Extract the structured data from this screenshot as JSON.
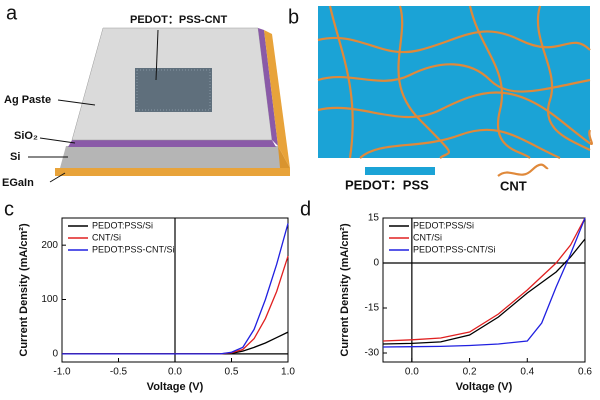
{
  "panels": {
    "a": {
      "label": "a",
      "center_label": "PEDOT：PSS-CNT",
      "layers": [
        "Ag Paste",
        "SiO₂",
        "Si",
        "EGaIn"
      ]
    },
    "b": {
      "label": "b",
      "legend": [
        "PEDOT：PSS",
        "CNT"
      ]
    }
  },
  "chart_data": [
    {
      "type": "line",
      "panel_label": "c",
      "xlabel": "Voltage (V)",
      "ylabel": "Current Density (mA/cm²)",
      "x": [
        -1.0,
        -0.5,
        0,
        0.4,
        0.5,
        0.6,
        0.7,
        0.8,
        0.9,
        1.0
      ],
      "series": [
        {
          "name": "PEDOT:PSS/Si",
          "color": "#000000",
          "values": [
            0,
            0,
            0,
            0,
            1,
            5,
            12,
            20,
            30,
            40
          ]
        },
        {
          "name": "CNT/Si",
          "color": "#e02020",
          "values": [
            0,
            0,
            0,
            0,
            2,
            8,
            28,
            65,
            115,
            180
          ]
        },
        {
          "name": "PEDOT:PSS-CNT/Si",
          "color": "#2020e0",
          "values": [
            0,
            0,
            0,
            0,
            3,
            12,
            45,
            100,
            165,
            240
          ]
        }
      ],
      "xlim": [
        -1.0,
        1.0
      ],
      "xticks": [
        {
          "value": -1,
          "label": "-1.0"
        },
        -0.5,
        {
          "value": 0,
          "label": "0.0"
        },
        0.5,
        {
          "value": 1,
          "label": "1.0"
        }
      ],
      "ylim": [
        -15,
        250
      ],
      "yticks": [
        0,
        100,
        200
      ],
      "legend": "upper left"
    },
    {
      "type": "line",
      "panel_label": "d",
      "xlabel": "Voltage (V)",
      "ylabel": "Current Density (mA/cm²)",
      "x": [
        -0.1,
        0,
        0.1,
        0.2,
        0.3,
        0.4,
        0.45,
        0.5,
        0.55,
        0.6
      ],
      "series": [
        {
          "name": "PEDOT:PSS/Si",
          "color": "#000000",
          "values": [
            -27,
            -26.8,
            -26.3,
            -24,
            -18,
            -10,
            -6.5,
            -3,
            2,
            8
          ]
        },
        {
          "name": "CNT/Si",
          "color": "#e02020",
          "values": [
            -26,
            -25.6,
            -25,
            -23,
            -17,
            -9,
            -4.5,
            0,
            6,
            15
          ]
        },
        {
          "name": "PEDOT:PSS-CNT/Si",
          "color": "#2020e0",
          "values": [
            -28,
            -27.9,
            -27.8,
            -27.5,
            -27,
            -26,
            -20,
            -8,
            3,
            15
          ]
        }
      ],
      "xlim": [
        -0.1,
        0.6
      ],
      "xticks": [
        {
          "value": 0,
          "label": "0.0"
        },
        0.2,
        0.4,
        0.6
      ],
      "ylim": [
        -33,
        15
      ],
      "yticks": [
        -30,
        -15,
        0,
        15
      ],
      "legend": "upper left"
    }
  ]
}
